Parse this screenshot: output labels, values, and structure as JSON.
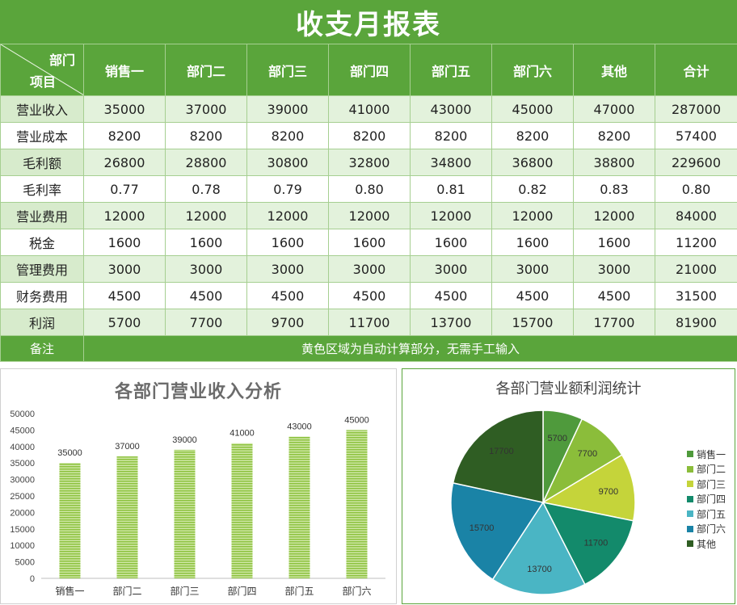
{
  "title": "收支月报表",
  "header": {
    "corner_top": "部门",
    "corner_bottom": "项目",
    "columns": [
      "销售一",
      "部门二",
      "部门三",
      "部门四",
      "部门五",
      "部门六",
      "其他",
      "合计"
    ]
  },
  "rows": [
    {
      "label": "营业收入",
      "values": [
        "35000",
        "37000",
        "39000",
        "41000",
        "43000",
        "45000",
        "47000",
        "287000"
      ]
    },
    {
      "label": "营业成本",
      "values": [
        "8200",
        "8200",
        "8200",
        "8200",
        "8200",
        "8200",
        "8200",
        "57400"
      ]
    },
    {
      "label": "毛利额",
      "values": [
        "26800",
        "28800",
        "30800",
        "32800",
        "34800",
        "36800",
        "38800",
        "229600"
      ]
    },
    {
      "label": "毛利率",
      "values": [
        "0.77",
        "0.78",
        "0.79",
        "0.80",
        "0.81",
        "0.82",
        "0.83",
        "0.80"
      ]
    },
    {
      "label": "营业费用",
      "values": [
        "12000",
        "12000",
        "12000",
        "12000",
        "12000",
        "12000",
        "12000",
        "84000"
      ]
    },
    {
      "label": "税金",
      "values": [
        "1600",
        "1600",
        "1600",
        "1600",
        "1600",
        "1600",
        "1600",
        "11200"
      ]
    },
    {
      "label": "管理费用",
      "values": [
        "3000",
        "3000",
        "3000",
        "3000",
        "3000",
        "3000",
        "3000",
        "21000"
      ]
    },
    {
      "label": "财务费用",
      "values": [
        "4500",
        "4500",
        "4500",
        "4500",
        "4500",
        "4500",
        "4500",
        "31500"
      ]
    },
    {
      "label": "利润",
      "values": [
        "5700",
        "7700",
        "9700",
        "11700",
        "13700",
        "15700",
        "17700",
        "81900"
      ]
    }
  ],
  "note": {
    "label": "备注",
    "text": "黄色区域为自动计算部分，无需手工输入"
  },
  "chart_data": [
    {
      "type": "bar",
      "title": "各部门营业收入分析",
      "categories": [
        "销售一",
        "部门二",
        "部门三",
        "部门四",
        "部门五",
        "部门六"
      ],
      "values": [
        35000,
        37000,
        39000,
        41000,
        43000,
        45000
      ],
      "ylim": [
        0,
        50000
      ],
      "yticks": [
        0,
        5000,
        10000,
        15000,
        20000,
        25000,
        30000,
        35000,
        40000,
        45000,
        50000
      ],
      "data_labels": true,
      "grid": false,
      "color": "#9bcc53"
    },
    {
      "type": "pie",
      "title": "各部门营业额利润统计",
      "labels": [
        "销售一",
        "部门二",
        "部门三",
        "部门四",
        "部门五",
        "部门六",
        "其他"
      ],
      "values": [
        5700,
        7700,
        9700,
        11700,
        13700,
        15700,
        17700
      ],
      "colors": [
        "#4f9a3c",
        "#8bbd3a",
        "#c5d43a",
        "#138a6b",
        "#4ab5c4",
        "#1a83a6",
        "#2f5d23"
      ],
      "legend": "right"
    }
  ]
}
